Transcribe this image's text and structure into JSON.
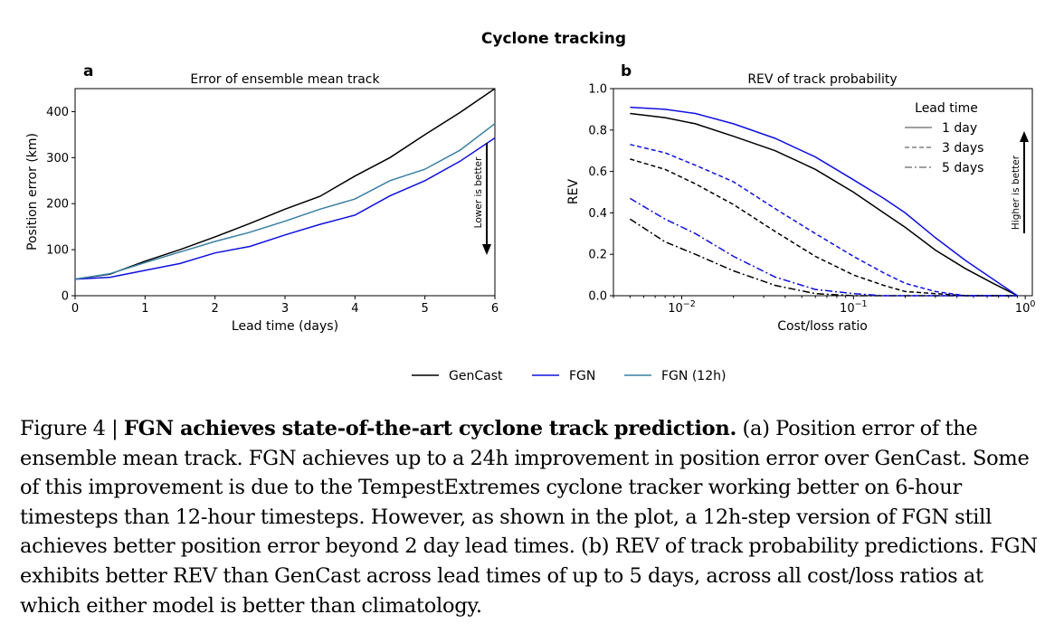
{
  "figure": {
    "suptitle": "Cyclone tracking",
    "legend": [
      {
        "label": "GenCast",
        "color": "#000000"
      },
      {
        "label": "FGN",
        "color": "#1010e0"
      },
      {
        "label": "FGN (12h)",
        "color": "#3b7fa3"
      }
    ]
  },
  "chart_data": [
    {
      "panel": "a",
      "type": "line",
      "title": "Error of ensemble mean track",
      "xlabel": "Lead time (days)",
      "ylabel": "Position error (km)",
      "xlim": [
        0,
        6
      ],
      "ylim": [
        0,
        450
      ],
      "xticks": [
        "0",
        "1",
        "2",
        "3",
        "4",
        "5",
        "6"
      ],
      "yticks": [
        "0",
        "100",
        "200",
        "300",
        "400"
      ],
      "grid": false,
      "annotation": "Lower is better",
      "x": [
        0,
        0.5,
        1,
        1.5,
        2,
        2.5,
        3,
        3.5,
        4,
        4.5,
        5,
        5.5,
        6
      ],
      "series": [
        {
          "name": "GenCast",
          "color": "#000000",
          "values": [
            36,
            47,
            75,
            100,
            128,
            157,
            188,
            216,
            260,
            300,
            350,
            398,
            450
          ]
        },
        {
          "name": "FGN",
          "color": "#1010e0",
          "values": [
            36,
            40,
            55,
            70,
            93,
            107,
            132,
            155,
            175,
            217,
            250,
            292,
            343
          ]
        },
        {
          "name": "FGN (12h)",
          "color": "#3b7fa3",
          "values": [
            36,
            48,
            72,
            95,
            118,
            138,
            162,
            188,
            210,
            250,
            275,
            316,
            374
          ]
        }
      ]
    },
    {
      "panel": "b",
      "type": "line",
      "title": "REV of track probability",
      "xlabel": "Cost/loss ratio",
      "ylabel": "REV",
      "xscale": "log",
      "xlim": [
        0.004,
        1.1
      ],
      "ylim": [
        0,
        1.0
      ],
      "xticks": [
        0.01,
        0.1,
        1
      ],
      "xtick_labels": [
        "10",
        "10",
        "10"
      ],
      "xtick_exponents": [
        "−2",
        "−1",
        "0"
      ],
      "yticks": [
        "0.0",
        "0.2",
        "0.4",
        "0.6",
        "0.8",
        "1.0"
      ],
      "grid": false,
      "annotation": "Higher is better",
      "legend_title": "Lead time",
      "legend_position": "upper right",
      "legend": [
        {
          "label": "1 day",
          "dash": "solid"
        },
        {
          "label": "3 days",
          "dash": "dashed"
        },
        {
          "label": "5 days",
          "dash": "dashdot"
        }
      ],
      "series": [
        {
          "model": "GenCast",
          "lead": "1 day",
          "color": "#000000",
          "dash": "solid",
          "x": [
            0.005,
            0.008,
            0.012,
            0.02,
            0.035,
            0.06,
            0.1,
            0.15,
            0.2,
            0.3,
            0.45,
            0.65,
            0.9
          ],
          "y": [
            0.88,
            0.86,
            0.83,
            0.77,
            0.7,
            0.61,
            0.5,
            0.4,
            0.33,
            0.22,
            0.13,
            0.06,
            0.0
          ]
        },
        {
          "model": "FGN",
          "lead": "1 day",
          "color": "#1010e0",
          "dash": "solid",
          "x": [
            0.005,
            0.008,
            0.012,
            0.02,
            0.035,
            0.06,
            0.1,
            0.15,
            0.2,
            0.3,
            0.45,
            0.65,
            0.9
          ],
          "y": [
            0.91,
            0.9,
            0.88,
            0.83,
            0.76,
            0.67,
            0.56,
            0.47,
            0.4,
            0.28,
            0.17,
            0.08,
            0.0
          ]
        },
        {
          "model": "GenCast",
          "lead": "3 days",
          "color": "#000000",
          "dash": "dashed",
          "x": [
            0.005,
            0.008,
            0.012,
            0.02,
            0.035,
            0.06,
            0.1,
            0.15,
            0.2,
            0.3,
            0.45,
            0.9
          ],
          "y": [
            0.66,
            0.61,
            0.54,
            0.44,
            0.31,
            0.19,
            0.1,
            0.05,
            0.02,
            0.01,
            0.0,
            0.0
          ]
        },
        {
          "model": "FGN",
          "lead": "3 days",
          "color": "#1010e0",
          "dash": "dashed",
          "x": [
            0.005,
            0.008,
            0.012,
            0.02,
            0.035,
            0.06,
            0.1,
            0.15,
            0.2,
            0.3,
            0.45,
            0.9
          ],
          "y": [
            0.73,
            0.69,
            0.63,
            0.55,
            0.42,
            0.3,
            0.19,
            0.11,
            0.06,
            0.02,
            0.0,
            0.0
          ]
        },
        {
          "model": "GenCast",
          "lead": "5 days",
          "color": "#000000",
          "dash": "dashdot",
          "x": [
            0.005,
            0.008,
            0.012,
            0.02,
            0.035,
            0.06,
            0.1,
            0.15,
            0.3,
            0.9
          ],
          "y": [
            0.37,
            0.26,
            0.2,
            0.12,
            0.05,
            0.01,
            0.0,
            0.0,
            0.0,
            0.0
          ]
        },
        {
          "model": "FGN",
          "lead": "5 days",
          "color": "#1010e0",
          "dash": "dashdot",
          "x": [
            0.005,
            0.008,
            0.012,
            0.02,
            0.035,
            0.06,
            0.1,
            0.15,
            0.3,
            0.9
          ],
          "y": [
            0.47,
            0.37,
            0.3,
            0.19,
            0.09,
            0.03,
            0.01,
            0.0,
            0.0,
            0.0
          ]
        }
      ]
    }
  ],
  "caption": {
    "label": "Figure 4 | ",
    "bold": "FGN achieves state-of-the-art cyclone track prediction.",
    "text": " (a) Position error of the ensemble mean track. FGN achieves up to a 24h improvement in position error over GenCast. Some of this improvement is due to the TempestExtremes cyclone tracker working better on 6-hour timesteps than 12-hour timesteps. However, as shown in the plot, a 12h-step version of FGN still achieves better position error beyond 2 day lead times. (b) REV of track probability predictions. FGN exhibits better REV than GenCast across lead times of up to 5 days, across all cost/loss ratios at which either model is better than climatology."
  }
}
